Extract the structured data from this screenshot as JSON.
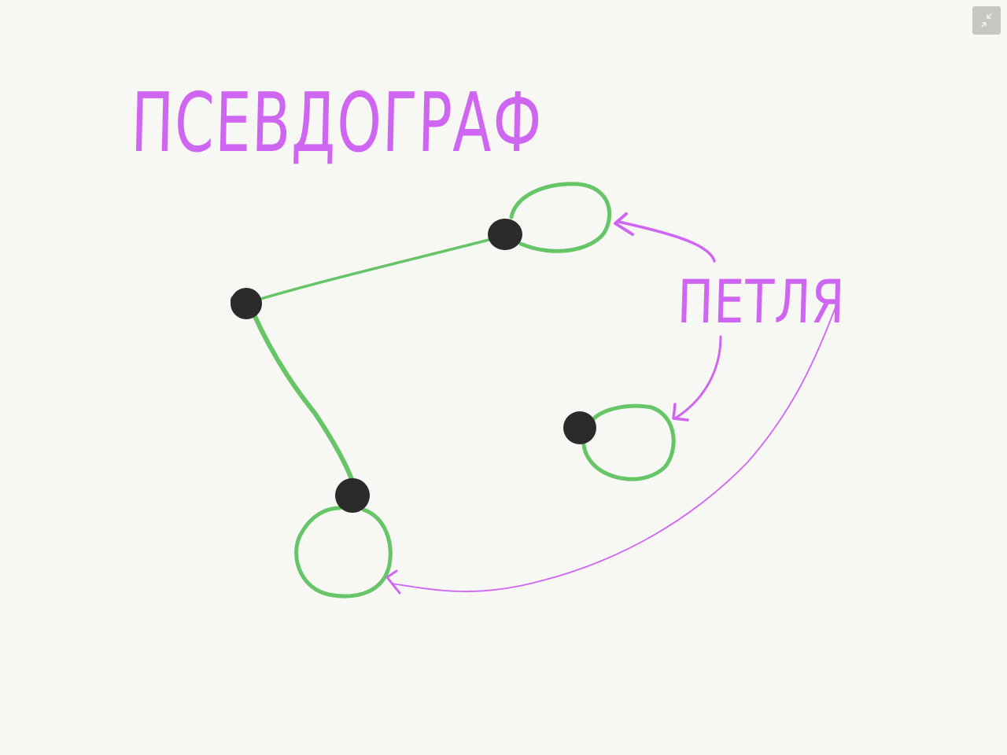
{
  "diagram": {
    "title": "ПСЕВДОГРАФ",
    "loop_label": "ПЕТЛЯ"
  },
  "colors": {
    "background": "#f7f7f4",
    "edge": "#66c566",
    "loop": "#66c566",
    "vertex": "#2b2b2b",
    "annotation": "#cf66f2",
    "toolbar_button": "#c6c6c2"
  },
  "toolbar": {
    "exit_fullscreen_icon": "collapse-arrows-icon"
  }
}
